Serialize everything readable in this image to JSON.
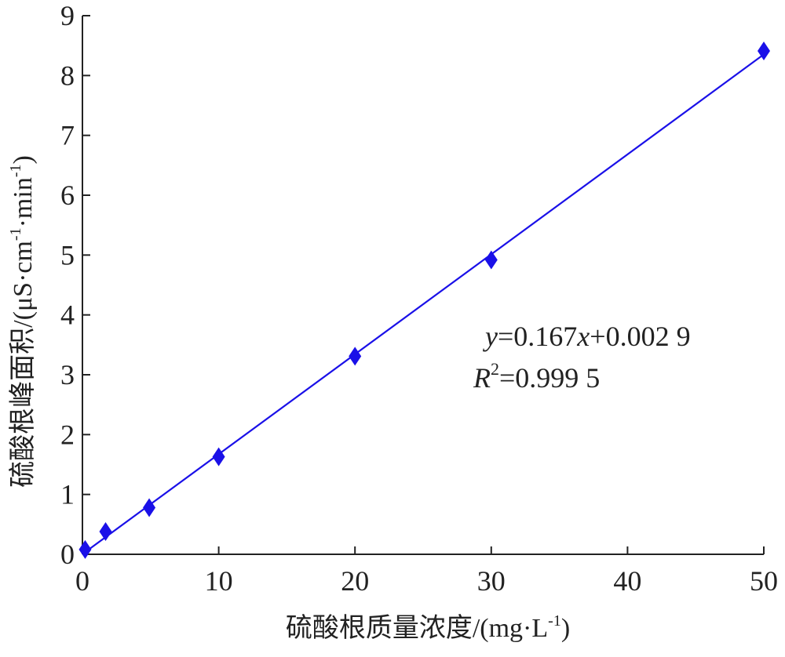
{
  "chart_data": {
    "type": "scatter",
    "xlabel": "硫酸根质量浓度/(mg·L",
    "xlabel_sup": "-1",
    "xlabel_end": ")",
    "ylabel_parts": {
      "a": "硫酸根峰面积/(μS·cm",
      "sup1": "-1",
      "b": "·min",
      "sup2": "-1",
      "c": ")"
    },
    "xlim": [
      0,
      50
    ],
    "ylim": [
      0,
      9
    ],
    "xticks": [
      0,
      10,
      20,
      30,
      40,
      50
    ],
    "yticks": [
      0,
      1,
      2,
      3,
      4,
      5,
      6,
      7,
      8,
      9
    ],
    "grid": false,
    "series": [
      {
        "marker": "diamond",
        "color": "#1a10e8",
        "x": [
          0.2,
          1.7,
          4.9,
          10,
          20,
          30,
          50
        ],
        "y": [
          0.08,
          0.38,
          0.78,
          1.63,
          3.31,
          4.92,
          8.41
        ]
      }
    ],
    "fit_line": {
      "slope": 0.167,
      "intercept": 0.0029,
      "color": "#1a10e8"
    },
    "equation": {
      "y_var": "y",
      "eq_mid": "=0.167",
      "x_var": "x",
      "eq_end": "+0.002 9",
      "r_var": "R",
      "r_sup": "2",
      "r_val": "=0.999 5"
    }
  }
}
